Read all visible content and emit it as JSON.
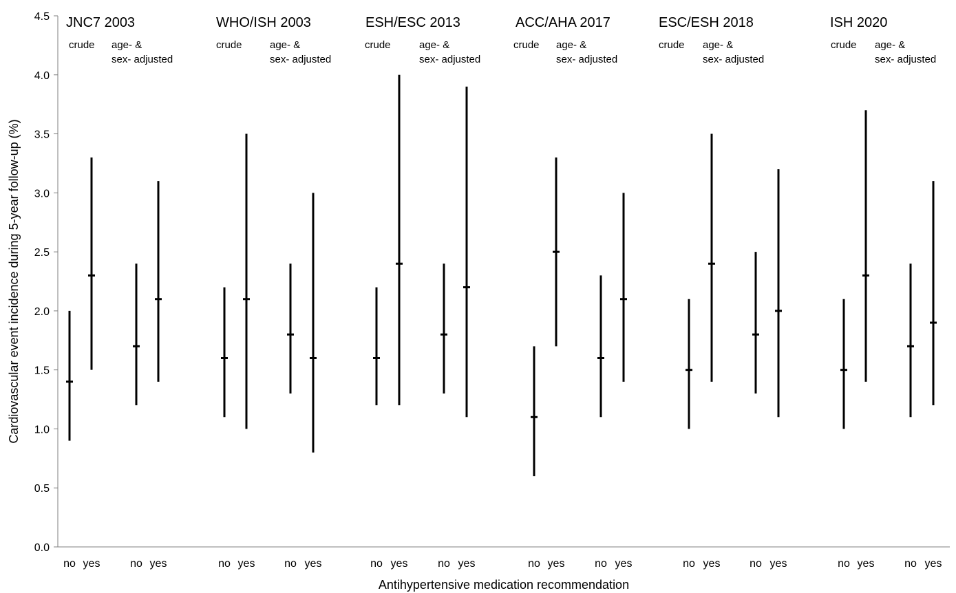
{
  "chart_data": {
    "type": "error-bar",
    "title": "",
    "xlabel": "Antihypertensive medication recommendation",
    "ylabel": "Cardiovascular event incidence during 5-year follow-up (%)",
    "ylim": [
      0.0,
      4.5
    ],
    "yticks": [
      "0.0",
      "0.5",
      "1.0",
      "1.5",
      "2.0",
      "2.5",
      "3.0",
      "3.5",
      "4.0",
      "4.5"
    ],
    "grid": false,
    "legend": "none",
    "colors": {
      "marks": "#000000",
      "axis": "#7f7f7f"
    },
    "groups": [
      {
        "guideline": "JNC7 2003",
        "subgroups": [
          {
            "label": [
              "crude"
            ],
            "points": [
              {
                "category": "no",
                "estimate": 1.4,
                "lower": 0.9,
                "upper": 2.0
              },
              {
                "category": "yes",
                "estimate": 2.3,
                "lower": 1.5,
                "upper": 3.3
              }
            ]
          },
          {
            "label": [
              "age- &",
              "sex- adjusted"
            ],
            "points": [
              {
                "category": "no",
                "estimate": 1.7,
                "lower": 1.2,
                "upper": 2.4
              },
              {
                "category": "yes",
                "estimate": 2.1,
                "lower": 1.4,
                "upper": 3.1
              }
            ]
          }
        ]
      },
      {
        "guideline": "WHO/ISH 2003",
        "subgroups": [
          {
            "label": [
              "crude"
            ],
            "points": [
              {
                "category": "no",
                "estimate": 1.6,
                "lower": 1.1,
                "upper": 2.2
              },
              {
                "category": "yes",
                "estimate": 2.1,
                "lower": 1.0,
                "upper": 3.5
              }
            ]
          },
          {
            "label": [
              "age- &",
              "sex- adjusted"
            ],
            "points": [
              {
                "category": "no",
                "estimate": 1.8,
                "lower": 1.3,
                "upper": 2.4
              },
              {
                "category": "yes",
                "estimate": 1.6,
                "lower": 0.8,
                "upper": 3.0
              }
            ]
          }
        ]
      },
      {
        "guideline": "ESH/ESC 2013",
        "subgroups": [
          {
            "label": [
              "crude"
            ],
            "points": [
              {
                "category": "no",
                "estimate": 1.6,
                "lower": 1.2,
                "upper": 2.2
              },
              {
                "category": "yes",
                "estimate": 2.4,
                "lower": 1.2,
                "upper": 4.0
              }
            ]
          },
          {
            "label": [
              "age- &",
              "sex- adjusted"
            ],
            "points": [
              {
                "category": "no",
                "estimate": 1.8,
                "lower": 1.3,
                "upper": 2.4
              },
              {
                "category": "yes",
                "estimate": 2.2,
                "lower": 1.1,
                "upper": 3.9
              }
            ]
          }
        ]
      },
      {
        "guideline": "ACC/AHA 2017",
        "subgroups": [
          {
            "label": [
              "crude"
            ],
            "points": [
              {
                "category": "no",
                "estimate": 1.1,
                "lower": 0.6,
                "upper": 1.7
              },
              {
                "category": "yes",
                "estimate": 2.5,
                "lower": 1.7,
                "upper": 3.3
              }
            ]
          },
          {
            "label": [
              "age- &",
              "sex- adjusted"
            ],
            "points": [
              {
                "category": "no",
                "estimate": 1.6,
                "lower": 1.1,
                "upper": 2.3
              },
              {
                "category": "yes",
                "estimate": 2.1,
                "lower": 1.4,
                "upper": 3.0
              }
            ]
          }
        ]
      },
      {
        "guideline": "ESC/ESH 2018",
        "subgroups": [
          {
            "label": [
              "crude"
            ],
            "points": [
              {
                "category": "no",
                "estimate": 1.5,
                "lower": 1.0,
                "upper": 2.1
              },
              {
                "category": "yes",
                "estimate": 2.4,
                "lower": 1.4,
                "upper": 3.5
              }
            ]
          },
          {
            "label": [
              "age- &",
              "sex- adjusted"
            ],
            "points": [
              {
                "category": "no",
                "estimate": 1.8,
                "lower": 1.3,
                "upper": 2.5
              },
              {
                "category": "yes",
                "estimate": 2.0,
                "lower": 1.1,
                "upper": 3.2
              }
            ]
          }
        ]
      },
      {
        "guideline": "ISH 2020",
        "subgroups": [
          {
            "label": [
              "crude"
            ],
            "points": [
              {
                "category": "no",
                "estimate": 1.5,
                "lower": 1.0,
                "upper": 2.1
              },
              {
                "category": "yes",
                "estimate": 2.3,
                "lower": 1.4,
                "upper": 3.7
              }
            ]
          },
          {
            "label": [
              "age- &",
              "sex- adjusted"
            ],
            "points": [
              {
                "category": "no",
                "estimate": 1.7,
                "lower": 1.1,
                "upper": 2.4
              },
              {
                "category": "yes",
                "estimate": 1.9,
                "lower": 1.2,
                "upper": 3.1
              }
            ]
          }
        ]
      }
    ]
  }
}
